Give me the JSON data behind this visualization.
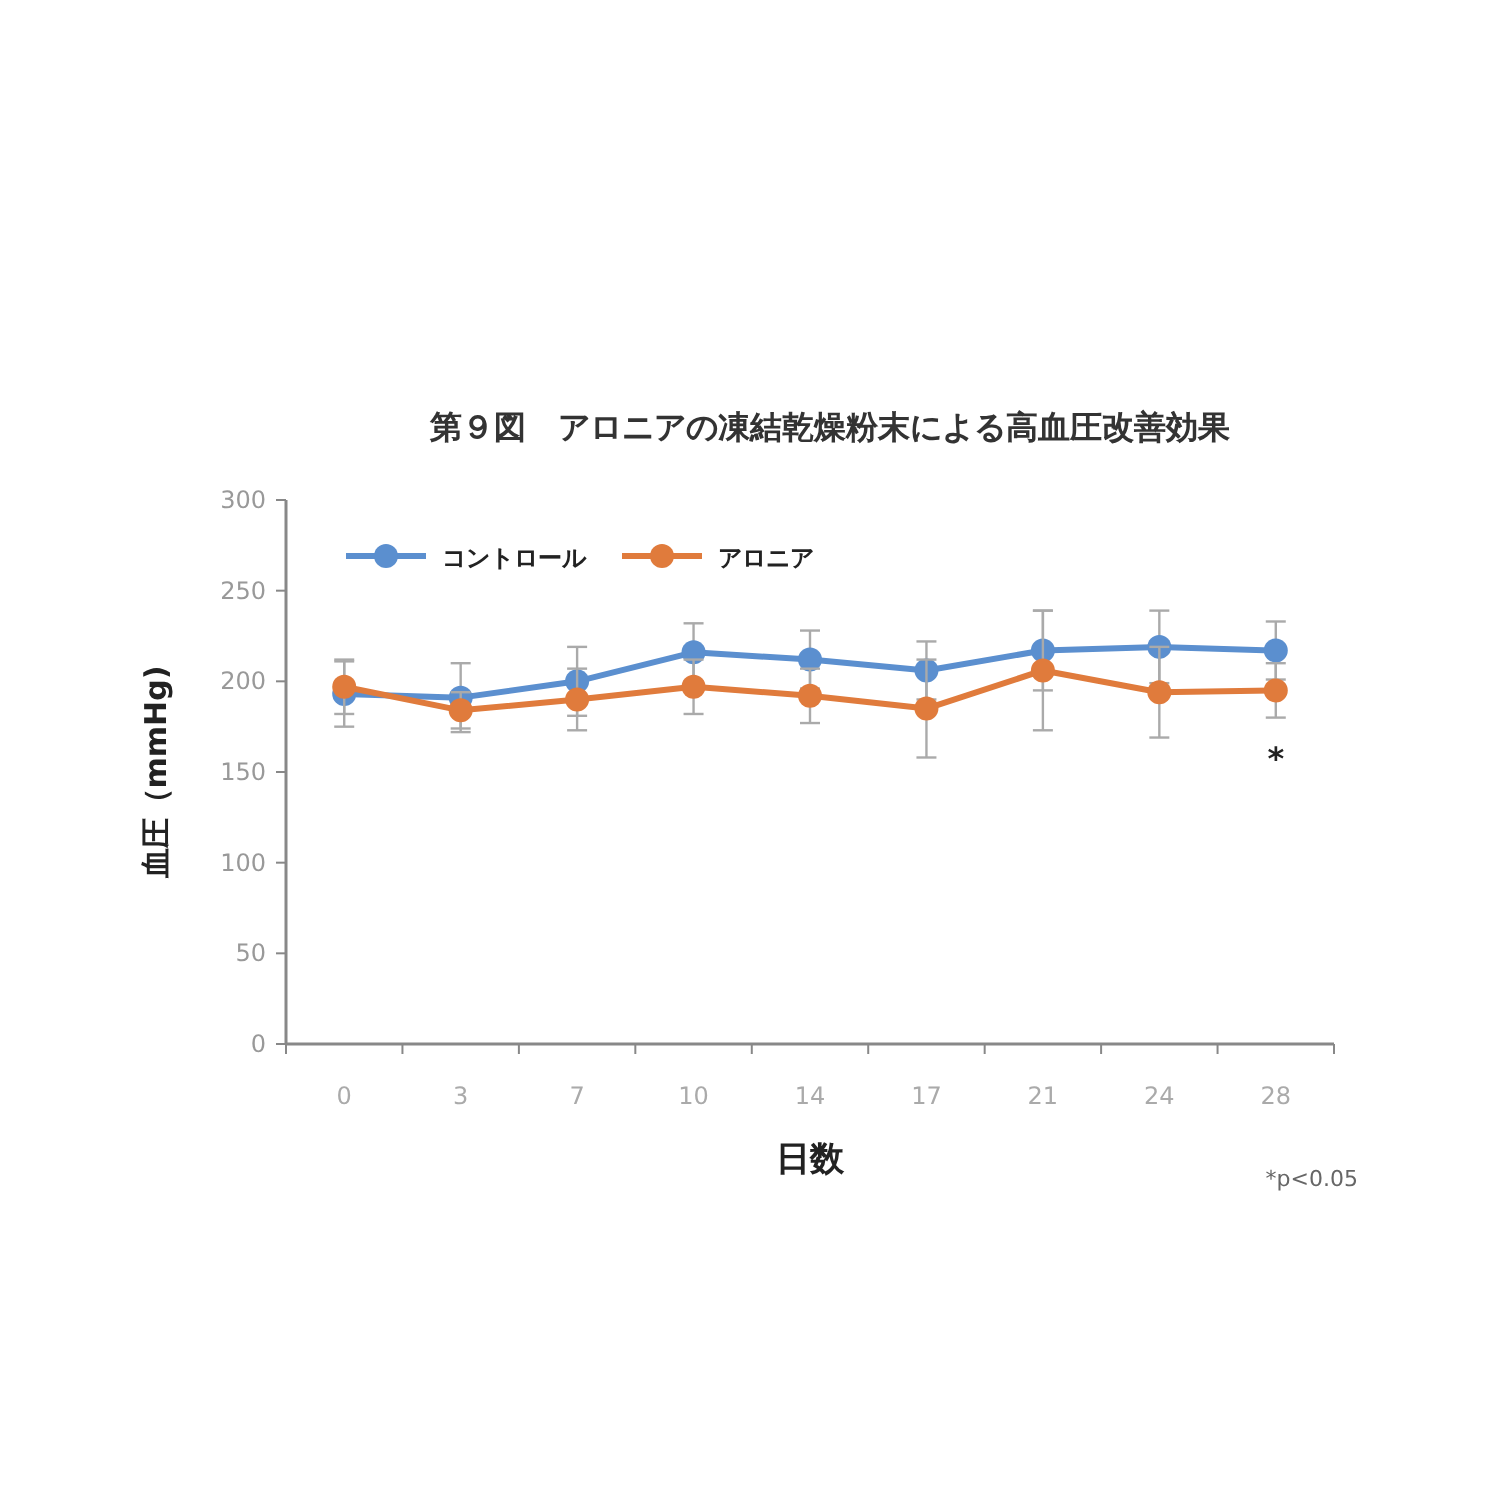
{
  "chart_data": {
    "type": "line",
    "title": "第９図　アロニアの凍結乾燥粉末による高血圧改善効果",
    "xlabel": "日数",
    "ylabel": "血圧（mmHg)",
    "categories": [
      "0",
      "3",
      "7",
      "10",
      "14",
      "17",
      "21",
      "24",
      "28"
    ],
    "series": [
      {
        "name": "コントロール",
        "color": "#5b8fcf",
        "values": [
          193,
          191,
          200,
          216,
          212,
          206,
          217,
          219,
          217
        ],
        "errors": [
          18,
          19,
          19,
          16,
          16,
          16,
          22,
          20,
          16
        ]
      },
      {
        "name": "アロニア",
        "color": "#e07b3c",
        "values": [
          197,
          184,
          190,
          197,
          192,
          185,
          206,
          194,
          195
        ],
        "errors": [
          15,
          10,
          17,
          15,
          15,
          27,
          33,
          25,
          15
        ]
      }
    ],
    "ylim": [
      0,
      300
    ],
    "yticks": [
      0,
      50,
      100,
      150,
      200,
      250,
      300
    ],
    "marker": "circle",
    "line_style": "solid",
    "legend": "top left",
    "grid": false,
    "annotations": [
      "*",
      "*p<0.05"
    ]
  }
}
